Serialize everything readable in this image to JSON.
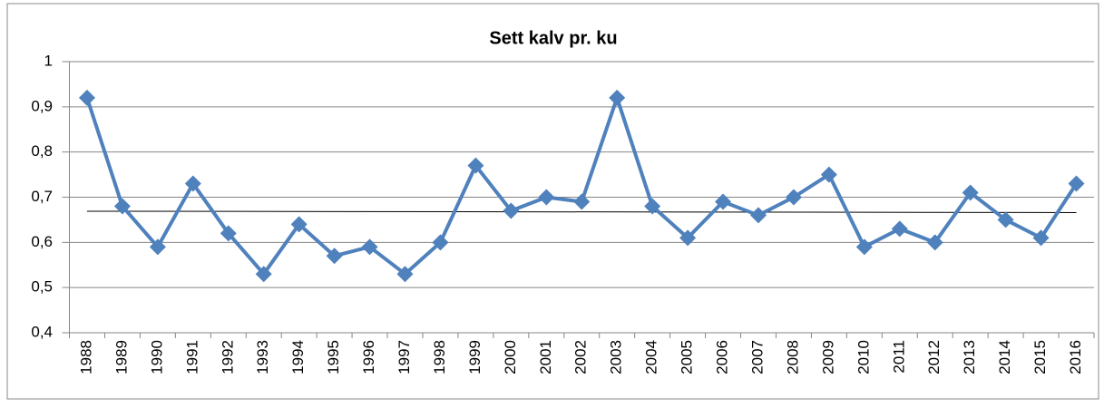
{
  "chart_data": {
    "type": "line",
    "title": "Sett kalv pr. ku",
    "categories": [
      "1988",
      "1989",
      "1990",
      "1991",
      "1992",
      "1993",
      "1994",
      "1995",
      "1996",
      "1997",
      "1998",
      "1999",
      "2000",
      "2001",
      "2002",
      "2003",
      "2004",
      "2005",
      "2006",
      "2007",
      "2008",
      "2009",
      "2010",
      "2011",
      "2012",
      "2013",
      "2014",
      "2015",
      "2016"
    ],
    "series": [
      {
        "color": "#4f81bd",
        "values": [
          0.92,
          0.68,
          0.59,
          0.73,
          0.62,
          0.53,
          0.64,
          0.57,
          0.59,
          0.53,
          0.6,
          0.77,
          0.67,
          0.7,
          0.69,
          0.92,
          0.68,
          0.61,
          0.69,
          0.66,
          0.7,
          0.75,
          0.59,
          0.63,
          0.6,
          0.71,
          0.65,
          0.61,
          0.73
        ]
      }
    ],
    "trendline": {
      "color": "#000000",
      "start": 0.669,
      "end": 0.666
    },
    "ylim": [
      0.4,
      1
    ],
    "yticks": [
      {
        "value": 0.4,
        "label": "0,4"
      },
      {
        "value": 0.5,
        "label": "0,5"
      },
      {
        "value": 0.6,
        "label": "0,6"
      },
      {
        "value": 0.7,
        "label": "0,7"
      },
      {
        "value": 0.8,
        "label": "0,8"
      },
      {
        "value": 0.9,
        "label": "0,9"
      },
      1
    ],
    "grid": true
  }
}
